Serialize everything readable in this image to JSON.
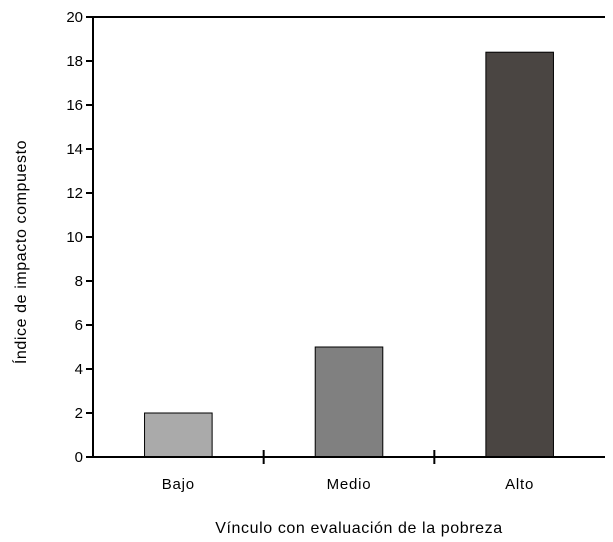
{
  "chart_data": {
    "type": "bar",
    "categories": [
      "Bajo",
      "Medio",
      "Alto"
    ],
    "values": [
      2,
      5,
      18.4
    ],
    "xlabel": "Vínculo con evaluación de la pobreza",
    "ylabel": "Índice de impacto compuesto",
    "ylim": [
      0,
      20
    ],
    "yticks": [
      "0",
      "2",
      "4",
      "6",
      "8",
      "10",
      "12",
      "14",
      "16",
      "18",
      "20"
    ],
    "grid": false,
    "legend": "none",
    "colors": [
      "#aaaaaa",
      "#808080",
      "#4a4542"
    ]
  }
}
